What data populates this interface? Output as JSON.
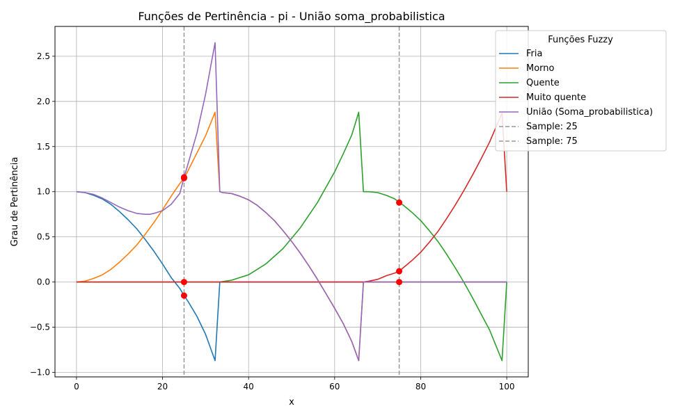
{
  "chart_data": {
    "type": "line",
    "title": "Funções de Pertinência - pi - União soma_probabilistica",
    "xlabel": "x",
    "ylabel": "Grau de Pertinência",
    "xlim": [
      -5,
      105
    ],
    "ylim": [
      -1.05,
      2.83
    ],
    "xticks": [
      0,
      20,
      40,
      60,
      80,
      100
    ],
    "xtick_labels": [
      "0",
      "20",
      "40",
      "60",
      "80",
      "100"
    ],
    "yticks": [
      -1.0,
      -0.5,
      0.0,
      0.5,
      1.0,
      1.5,
      2.0,
      2.5
    ],
    "ytick_labels": [
      "−1.0",
      "−0.5",
      "0.0",
      "0.5",
      "1.0",
      "1.5",
      "2.0",
      "2.5"
    ],
    "grid": true,
    "legend_title": "Funções Fuzzy",
    "legend_position": "upper-right-outside",
    "series": [
      {
        "name": "Fria",
        "color": "#1f77b4",
        "x": [
          0,
          2,
          4,
          6,
          8,
          10,
          12,
          14,
          16,
          18,
          20,
          22,
          24,
          25,
          26,
          28,
          30,
          32.2,
          33.3,
          34,
          40,
          60,
          80,
          100
        ],
        "y": [
          1.0,
          0.99,
          0.96,
          0.92,
          0.86,
          0.78,
          0.69,
          0.59,
          0.47,
          0.34,
          0.2,
          0.05,
          -0.07,
          -0.15,
          -0.22,
          -0.38,
          -0.58,
          -0.87,
          0.0,
          0.0,
          0.0,
          0.0,
          0.0,
          0.0
        ]
      },
      {
        "name": "Morno",
        "color": "#ff7f0e",
        "x": [
          0,
          2,
          4,
          6,
          8,
          10,
          12,
          14,
          16,
          18,
          20,
          22,
          24,
          25,
          26,
          28,
          30,
          32.2,
          33.3,
          34,
          36,
          38,
          40,
          42,
          44,
          46,
          48,
          50,
          52,
          54,
          56,
          58,
          60,
          62,
          64,
          65.6,
          66.7,
          70,
          80,
          100
        ],
        "y": [
          0.0,
          0.01,
          0.04,
          0.08,
          0.14,
          0.22,
          0.31,
          0.41,
          0.53,
          0.66,
          0.8,
          0.95,
          1.09,
          1.15,
          1.24,
          1.43,
          1.62,
          1.88,
          1.0,
          0.99,
          0.98,
          0.95,
          0.91,
          0.85,
          0.77,
          0.68,
          0.57,
          0.45,
          0.32,
          0.18,
          0.03,
          -0.13,
          -0.29,
          -0.46,
          -0.66,
          -0.87,
          0.0,
          0.0,
          0.0,
          0.0
        ]
      },
      {
        "name": "Quente",
        "color": "#2ca02c",
        "x": [
          0,
          20,
          33.3,
          36,
          40,
          44,
          48,
          52,
          56,
          60,
          62,
          64,
          65.6,
          66.7,
          68,
          70,
          72,
          74,
          75,
          76,
          78,
          80,
          82,
          84,
          86,
          88,
          90,
          92,
          94,
          96,
          98.9,
          100
        ],
        "y": [
          0.0,
          0.0,
          0.0,
          0.02,
          0.08,
          0.2,
          0.37,
          0.6,
          0.88,
          1.22,
          1.42,
          1.63,
          1.88,
          1.0,
          1.0,
          0.99,
          0.96,
          0.92,
          0.88,
          0.85,
          0.77,
          0.68,
          0.57,
          0.45,
          0.31,
          0.16,
          0.0,
          -0.17,
          -0.35,
          -0.53,
          -0.87,
          0.0
        ]
      },
      {
        "name": "Muito quente",
        "color": "#d62728",
        "x": [
          0,
          20,
          40,
          60,
          66.7,
          68,
          70,
          72,
          74,
          75,
          76,
          78,
          80,
          82,
          84,
          86,
          88,
          90,
          92,
          94,
          96,
          98.9,
          100
        ],
        "y": [
          0.0,
          0.0,
          0.0,
          0.0,
          0.0,
          0.01,
          0.03,
          0.07,
          0.1,
          0.12,
          0.16,
          0.24,
          0.33,
          0.44,
          0.56,
          0.7,
          0.85,
          1.01,
          1.18,
          1.36,
          1.55,
          1.87,
          1.0
        ]
      },
      {
        "name": "União (Soma_probabilistica)",
        "color": "#9467bd",
        "x": [
          0,
          2,
          4,
          6,
          8,
          10,
          12,
          14,
          16,
          17,
          18,
          20,
          22,
          24,
          25,
          26,
          28,
          30,
          32.2,
          33.3,
          34,
          36,
          38,
          40,
          42,
          44,
          46,
          48,
          50,
          52,
          54,
          56,
          58,
          60,
          62,
          64,
          65.6,
          66.7,
          70,
          80,
          100
        ],
        "y": [
          1.0,
          0.99,
          0.97,
          0.93,
          0.88,
          0.83,
          0.79,
          0.76,
          0.75,
          0.75,
          0.76,
          0.79,
          0.86,
          0.98,
          1.16,
          1.32,
          1.65,
          2.08,
          2.65,
          1.0,
          0.99,
          0.98,
          0.95,
          0.91,
          0.85,
          0.77,
          0.68,
          0.57,
          0.45,
          0.32,
          0.18,
          0.03,
          -0.13,
          -0.29,
          -0.46,
          -0.66,
          -0.87,
          0.0,
          0.0,
          0.0,
          0.0
        ]
      }
    ],
    "vlines": [
      {
        "name": "Sample: 25",
        "x": 25,
        "color": "#999999",
        "style": "dashed"
      },
      {
        "name": "Sample: 75",
        "x": 75,
        "color": "#999999",
        "style": "dashed"
      }
    ],
    "sample_points": [
      {
        "x": 25,
        "y": -0.15
      },
      {
        "x": 25,
        "y": 1.15
      },
      {
        "x": 25,
        "y": 1.16
      },
      {
        "x": 25,
        "y": 0.0
      },
      {
        "x": 75,
        "y": 0.0
      },
      {
        "x": 75,
        "y": 0.88
      },
      {
        "x": 75,
        "y": 0.12
      }
    ],
    "sample_point_color": "#ff0000"
  }
}
